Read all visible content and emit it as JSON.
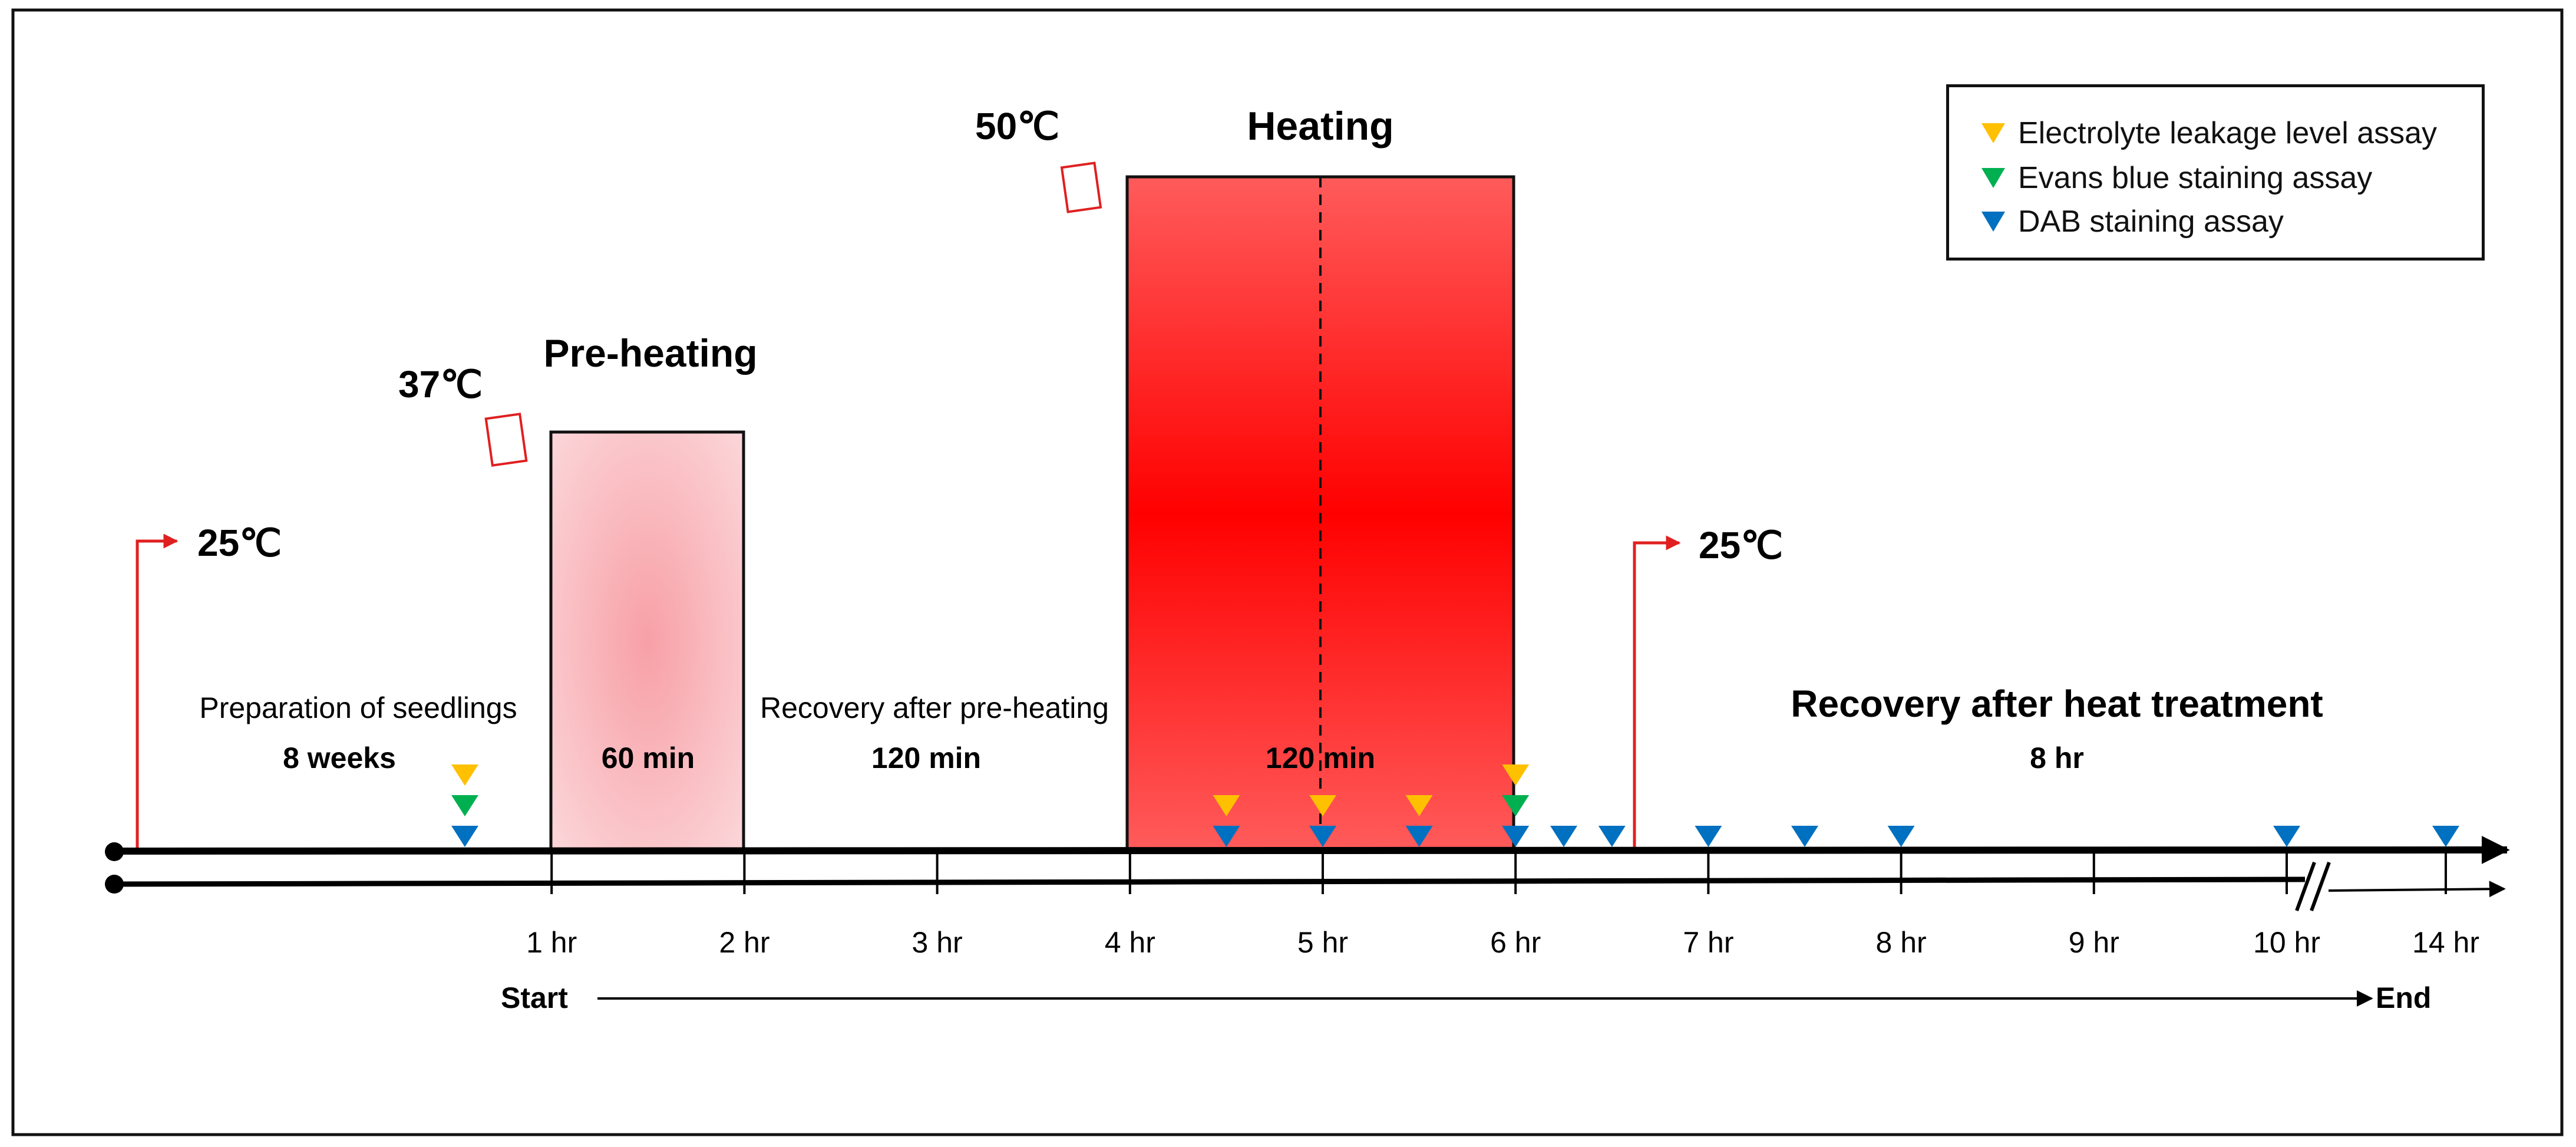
{
  "title_heating": "Heating",
  "title_preheating": "Pre-heating",
  "temps": {
    "t50": "50℃",
    "t37": "37℃",
    "t25_start": "25℃",
    "t25_end": "25℃"
  },
  "phases": {
    "prep_label": "Preparation of seedlings",
    "prep_duration": "8 weeks",
    "preheat_duration": "60 min",
    "recovery_pre_label": "Recovery after pre-heating",
    "recovery_pre_duration": "120 min",
    "heat_duration": "120 min",
    "recovery_heat_label": "Recovery after heat treatment",
    "recovery_heat_duration": "8 hr"
  },
  "axis": {
    "ticks": [
      "1 hr",
      "2 hr",
      "3 hr",
      "4 hr",
      "5 hr",
      "6 hr",
      "7 hr",
      "8 hr",
      "9 hr",
      "10 hr",
      "14 hr"
    ],
    "start_label": "Start",
    "end_label": "End"
  },
  "legend": {
    "items": [
      {
        "label": "Electrolyte leakage level assay",
        "color": "#FFC000"
      },
      {
        "label": "Evans blue staining assay",
        "color": "#00B050"
      },
      {
        "label": "DAB staining assay",
        "color": "#0070C0"
      }
    ]
  },
  "colors": {
    "leakage": "#FFC000",
    "evans": "#00B050",
    "dab": "#0070C0",
    "heat": "#FF0000",
    "arrow_red": "#E02020"
  },
  "markers": {
    "leakage_hours": [
      0.55,
      4.5,
      5.0,
      5.5,
      6.0
    ],
    "evans_hours": [
      0.55,
      6.0
    ],
    "dab_hours": [
      0.55,
      4.5,
      5.0,
      5.5,
      6.0,
      6.25,
      6.5,
      7.0,
      7.5,
      8.0,
      10.0,
      14.0
    ]
  }
}
